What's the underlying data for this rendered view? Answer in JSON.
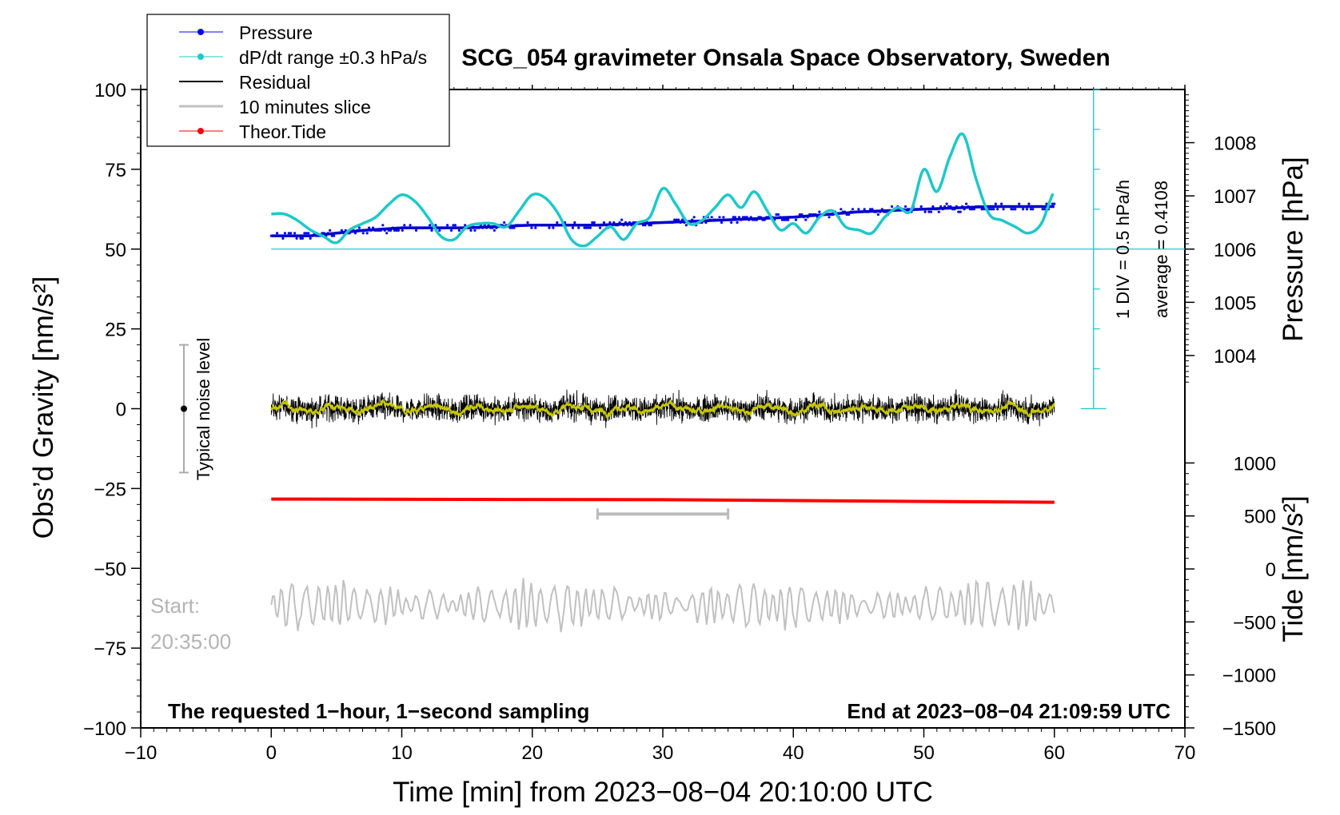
{
  "chart_data": {
    "type": "line",
    "title": "SCG_054 gravimeter Onsala Space Observatory, Sweden",
    "xlabel": "Time [min] from 2023−08−04 20:10:00 UTC",
    "ylabel_left": "Obs’d Gravity [nm/s²]",
    "ylabel_right_pressure": "Pressure [hPa]",
    "ylabel_right_tide": "Tide [nm/s²]",
    "xlim": [
      -10,
      70
    ],
    "ylim": [
      -100,
      100
    ],
    "x_ticks": [
      "−10",
      "0",
      "10",
      "20",
      "30",
      "40",
      "50",
      "60",
      "70"
    ],
    "x_tick_values": [
      -10,
      0,
      10,
      20,
      30,
      40,
      50,
      60,
      70
    ],
    "y_ticks": [
      "100",
      "75",
      "50",
      "25",
      "0",
      "−25",
      "−50",
      "−75",
      "−100"
    ],
    "y_tick_values": [
      100,
      75,
      50,
      25,
      0,
      -25,
      -50,
      -75,
      -100
    ],
    "pressure_axis": {
      "tick_labels": [
        "1008",
        "1007",
        "1006",
        "1005",
        "1004"
      ],
      "tick_values": [
        1008,
        1007,
        1006,
        1005,
        1004
      ],
      "gravity_per_hpa": 16.67,
      "reference_hpa": 1006,
      "reference_gravity": 50
    },
    "tide_axis": {
      "tick_labels": [
        "1000",
        "500",
        "0",
        "−500",
        "−1000",
        "−1500"
      ],
      "tick_values": [
        1000,
        500,
        0,
        -500,
        -1000,
        -1500
      ],
      "range": [
        -1500,
        1000
      ]
    },
    "legend": {
      "position": "top-left",
      "entries": [
        {
          "label": "Pressure",
          "color": "#0000ff"
        },
        {
          "label": "dP/dt range ±0.3 hPa/s",
          "color": "#1ec8c8"
        },
        {
          "label": "Residual",
          "color": "#000000"
        },
        {
          "label": "10 minutes slice",
          "color": "#c0c0c0"
        },
        {
          "label": "Theor.Tide",
          "color": "#ff0000"
        }
      ]
    },
    "series": [
      {
        "name": "Pressure",
        "unit": "hPa",
        "x": [
          0,
          3,
          5,
          7,
          10,
          15,
          20,
          25,
          30,
          35,
          40,
          45,
          50,
          55,
          60
        ],
        "values": [
          1006.25,
          1006.25,
          1006.3,
          1006.35,
          1006.4,
          1006.4,
          1006.45,
          1006.45,
          1006.5,
          1006.55,
          1006.6,
          1006.7,
          1006.75,
          1006.8,
          1006.8
        ]
      },
      {
        "name": "dP/dt range ±0.3 hPa/s",
        "unit": "nm/s² (plot units)",
        "x": [
          0,
          1,
          2,
          3,
          4,
          5,
          6,
          7,
          8,
          9,
          10,
          11,
          12,
          13,
          14,
          15,
          16,
          17,
          18,
          19,
          20,
          21,
          22,
          23,
          24,
          25,
          26,
          27,
          28,
          29,
          30,
          31,
          32,
          33,
          34,
          35,
          36,
          37,
          38,
          39,
          40,
          41,
          42,
          43,
          44,
          45,
          46,
          47,
          48,
          49,
          50,
          51,
          52,
          53,
          54,
          55,
          56,
          57,
          58,
          59,
          60
        ],
        "values": [
          61,
          61,
          59,
          56,
          54,
          52,
          56,
          58,
          60,
          64,
          67,
          65,
          60,
          54,
          53,
          57,
          58,
          58,
          57,
          62,
          67,
          66,
          61,
          53,
          51,
          54,
          57,
          53,
          58,
          60,
          69,
          64,
          58,
          59,
          63,
          67,
          63,
          68,
          62,
          56,
          58,
          55,
          60,
          62,
          57,
          56,
          55,
          60,
          63,
          62,
          75,
          68,
          79,
          86,
          72,
          61,
          59,
          57,
          55,
          58,
          68
        ]
      },
      {
        "name": "Residual",
        "unit": "nm/s²",
        "x": [
          0,
          60
        ],
        "values": [
          0,
          0
        ],
        "noise_amplitude": 5,
        "smoothed_trace_color": "#c8c800"
      },
      {
        "name": "Theor.Tide",
        "unit": "nm/s²",
        "x": [
          0,
          15,
          30,
          45,
          60
        ],
        "values": [
          -28.3,
          -28.4,
          -28.5,
          -28.9,
          -29.3
        ]
      },
      {
        "name": "10 minutes slice",
        "unit": "nm/s² (plot units)",
        "x": [
          0,
          60
        ],
        "center": -61.5,
        "amplitude": 6
      }
    ],
    "annotations": {
      "noise_label": "Typical noise level",
      "noise_range": [
        -20,
        20
      ],
      "noise_center": 0,
      "slice_range_min": [
        25,
        35
      ],
      "slice_marker_gravity": -33,
      "scale_bar": {
        "div_label": "1 DIV = 0.5 hPa/h",
        "average_label": "average = 0.4108",
        "x": 63,
        "baseline": 50,
        "top": 100,
        "bottom": 0
      },
      "start_line1": "Start:",
      "start_line2": "20:35:00",
      "footer_left": "The requested 1−hour, 1−second sampling",
      "footer_right": "End at 2023−08−04 21:09:59 UTC"
    }
  }
}
